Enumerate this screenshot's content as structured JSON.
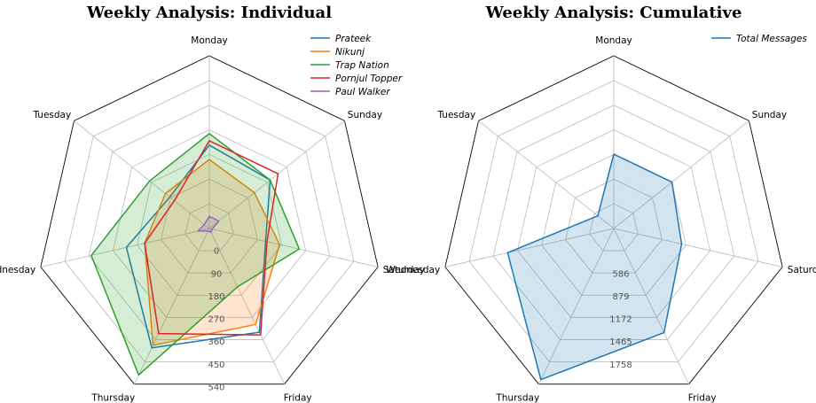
{
  "chart_data": [
    {
      "type": "radar",
      "title": "Weekly Analysis: Individual",
      "categories": [
        "Monday",
        "Sunday",
        "Saturday",
        "Friday",
        "Thursday",
        "Wednesday",
        "Tuesday"
      ],
      "ticks": [
        "0",
        "90",
        "180",
        "270",
        "360",
        "450",
        "540"
      ],
      "rmax": 600,
      "legend_position": "top-right",
      "series": [
        {
          "name": "Prateek",
          "color": "#1f77b4",
          "fill": false,
          "values": [
            290,
            270,
            200,
            400,
            460,
            295,
            175
          ]
        },
        {
          "name": "Nikunj",
          "color": "#ff7f0e",
          "fill": true,
          "values": [
            240,
            200,
            250,
            370,
            450,
            230,
            195
          ]
        },
        {
          "name": "Trap Nation",
          "color": "#2ca02c",
          "fill": true,
          "values": [
            330,
            270,
            320,
            225,
            565,
            420,
            265
          ]
        },
        {
          "name": "Pornjul Topper",
          "color": "#d62728",
          "fill": false,
          "values": [
            305,
            305,
            205,
            410,
            405,
            230,
            155
          ]
        },
        {
          "name": "Paul Walker",
          "color": "#9467bd",
          "fill": true,
          "values": [
            42,
            42,
            10,
            15,
            10,
            40,
            22
          ]
        }
      ]
    },
    {
      "type": "radar",
      "title": "Weekly Analysis: Cumulative",
      "categories": [
        "Monday",
        "Sunday",
        "Saturday",
        "Friday",
        "Thursday",
        "Wednesday",
        "Tuesday"
      ],
      "ticks": [
        "586",
        "879",
        "1172",
        "1465",
        "1758"
      ],
      "rmin": 293,
      "rmax": 2051,
      "legend_position": "top-right",
      "series": [
        {
          "name": "Total Messages",
          "color": "#1f77b4",
          "fill": true,
          "values": [
            1050,
            1050,
            1000,
            1470,
            2000,
            1400,
            500
          ]
        }
      ]
    }
  ]
}
